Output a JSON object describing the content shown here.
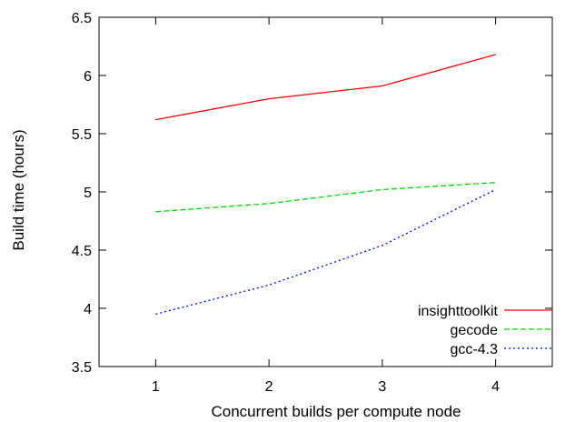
{
  "chart_data": {
    "type": "line",
    "title": "",
    "xlabel": "Concurrent builds per compute node",
    "ylabel": "Build time (hours)",
    "x": [
      1,
      2,
      3,
      4
    ],
    "xlim": [
      0.5,
      4.5
    ],
    "ylim": [
      3.5,
      6.5
    ],
    "xticks": [
      "1",
      "2",
      "3",
      "4"
    ],
    "yticks": [
      "3.5",
      "4",
      "4.5",
      "5",
      "5.5",
      "6",
      "6.5"
    ],
    "grid": false,
    "legend_position": "bottom-right",
    "series": [
      {
        "name": "insighttoolkit",
        "values": [
          5.62,
          5.8,
          5.91,
          6.18
        ],
        "color": "#ff0000",
        "dash": "solid"
      },
      {
        "name": "gecode",
        "values": [
          4.83,
          4.9,
          5.02,
          5.08
        ],
        "color": "#00dd00",
        "dash": "dashed"
      },
      {
        "name": "gcc-4.3",
        "values": [
          3.95,
          4.2,
          4.54,
          5.02
        ],
        "color": "#0000ff",
        "dash": "dotted"
      }
    ]
  }
}
